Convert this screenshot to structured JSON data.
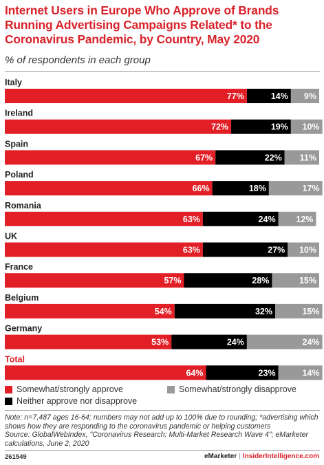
{
  "title": "Internet Users in Europe Who Approve of Brands Running Advertising Campaigns Related* to the Coronavirus Pandemic, by Country, May 2020",
  "subtitle": "% of respondents in each group",
  "chart_data": {
    "type": "bar",
    "orientation": "horizontal",
    "stacked": true,
    "categories": [
      "Italy",
      "Ireland",
      "Spain",
      "Poland",
      "Romania",
      "UK",
      "France",
      "Belgium",
      "Germany",
      "Total"
    ],
    "series": [
      {
        "name": "Somewhat/strongly approve",
        "color": "#e21f26",
        "values": [
          77,
          72,
          67,
          66,
          63,
          63,
          57,
          54,
          53,
          64
        ]
      },
      {
        "name": "Neither approve nor disapprove",
        "color": "#000000",
        "values": [
          14,
          19,
          22,
          18,
          24,
          27,
          28,
          32,
          24,
          23
        ]
      },
      {
        "name": "Somewhat/strongly disapprove",
        "color": "#999999",
        "values": [
          9,
          10,
          11,
          17,
          12,
          10,
          15,
          15,
          24,
          14
        ]
      }
    ],
    "value_suffix": "%",
    "xlim": [
      0,
      100
    ],
    "highlight_category": "Total",
    "legend_position": "bottom"
  },
  "legend": {
    "approve": "Somewhat/strongly approve",
    "neither": "Neither approve nor disapprove",
    "disapprove": "Somewhat/strongly disapprove"
  },
  "note": "Note: n=7,487 ages 16-64; numbers may not add up to 100% due to rounding; *advertising which shows how they are responding to the coronavirus pandemic or helping customers",
  "source": "Source: GlobalWebIndex, \"Coronavirus Research: Multi-Market Research Wave 4\"; eMarketer calculations, June 2, 2020",
  "footer": {
    "id": "261549",
    "brand_emarketer": "eMarketer",
    "separator": "|",
    "brand_insider": "InsiderIntelligence.com"
  }
}
